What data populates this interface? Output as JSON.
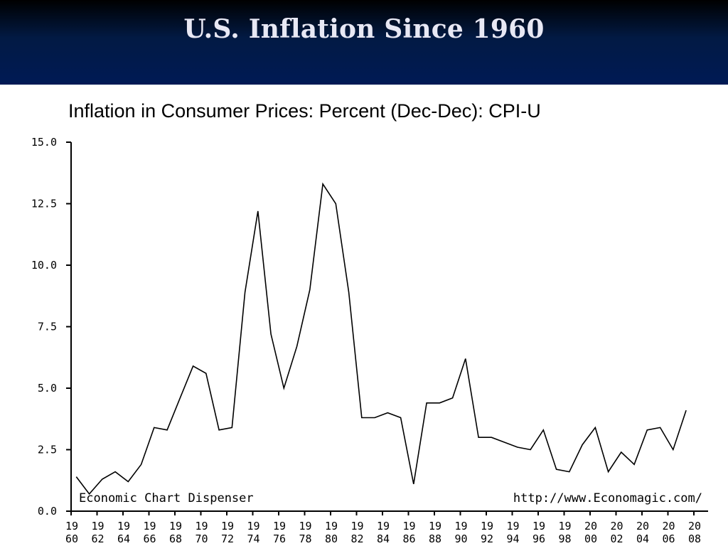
{
  "slide": {
    "title": "U.S. Inflation Since 1960"
  },
  "chart_data": {
    "type": "line",
    "title": "Inflation in Consumer Prices: Percent (Dec-Dec): CPI-U",
    "xlabel": "",
    "ylabel": "",
    "ylim": [
      0,
      15
    ],
    "xlim": [
      1960,
      2008
    ],
    "yticks": [
      "0.0",
      "2.5",
      "5.0",
      "7.5",
      "10.0",
      "12.5",
      "15.0"
    ],
    "xticks": [
      {
        "year": 1960,
        "top": "19",
        "bottom": "60"
      },
      {
        "year": 1962,
        "top": "19",
        "bottom": "62"
      },
      {
        "year": 1964,
        "top": "19",
        "bottom": "64"
      },
      {
        "year": 1966,
        "top": "19",
        "bottom": "66"
      },
      {
        "year": 1968,
        "top": "19",
        "bottom": "68"
      },
      {
        "year": 1970,
        "top": "19",
        "bottom": "70"
      },
      {
        "year": 1972,
        "top": "19",
        "bottom": "72"
      },
      {
        "year": 1974,
        "top": "19",
        "bottom": "74"
      },
      {
        "year": 1976,
        "top": "19",
        "bottom": "76"
      },
      {
        "year": 1978,
        "top": "19",
        "bottom": "78"
      },
      {
        "year": 1980,
        "top": "19",
        "bottom": "80"
      },
      {
        "year": 1982,
        "top": "19",
        "bottom": "82"
      },
      {
        "year": 1984,
        "top": "19",
        "bottom": "84"
      },
      {
        "year": 1986,
        "top": "19",
        "bottom": "86"
      },
      {
        "year": 1988,
        "top": "19",
        "bottom": "88"
      },
      {
        "year": 1990,
        "top": "19",
        "bottom": "90"
      },
      {
        "year": 1992,
        "top": "19",
        "bottom": "92"
      },
      {
        "year": 1994,
        "top": "19",
        "bottom": "94"
      },
      {
        "year": 1996,
        "top": "19",
        "bottom": "96"
      },
      {
        "year": 1998,
        "top": "19",
        "bottom": "98"
      },
      {
        "year": 2000,
        "top": "20",
        "bottom": "00"
      },
      {
        "year": 2002,
        "top": "20",
        "bottom": "02"
      },
      {
        "year": 2004,
        "top": "20",
        "bottom": "04"
      },
      {
        "year": 2006,
        "top": "20",
        "bottom": "06"
      },
      {
        "year": 2008,
        "top": "20",
        "bottom": "08"
      }
    ],
    "grid": false,
    "series": [
      {
        "x": [
          1960.4,
          1961.4,
          1962.4,
          1963.4,
          1964.4,
          1965.4,
          1966.4,
          1967.4,
          1968.4,
          1969.4,
          1970.4,
          1971.4,
          1972.4,
          1973.4,
          1974.4,
          1975.4,
          1976.4,
          1977.4,
          1978.4,
          1979.4,
          1980.4,
          1981.4,
          1982.4,
          1983.4,
          1984.4,
          1985.4,
          1986.4,
          1987.4,
          1988.4,
          1989.4,
          1990.4,
          1991.4,
          1992.4,
          1993.4,
          1994.4,
          1995.4,
          1996.4,
          1997.4,
          1998.4,
          1999.4,
          2000.4,
          2001.4,
          2002.4,
          2003.4,
          2004.4,
          2005.4,
          2006.4,
          2007.4
        ],
        "values": [
          1.4,
          0.7,
          1.3,
          1.6,
          1.2,
          1.9,
          3.4,
          3.3,
          4.6,
          5.9,
          5.6,
          3.3,
          3.4,
          8.9,
          12.2,
          7.2,
          5.0,
          6.7,
          9.0,
          13.3,
          12.5,
          8.9,
          3.8,
          3.8,
          4.0,
          3.8,
          1.1,
          4.4,
          4.4,
          4.6,
          6.2,
          3.0,
          3.0,
          2.8,
          2.6,
          2.5,
          3.3,
          1.7,
          1.6,
          2.7,
          3.4,
          1.6,
          2.4,
          1.9,
          3.3,
          3.4,
          2.5,
          4.1
        ]
      }
    ],
    "annotations": {
      "left": "Economic Chart Dispenser",
      "right": "http://www.Economagic.com/"
    }
  }
}
